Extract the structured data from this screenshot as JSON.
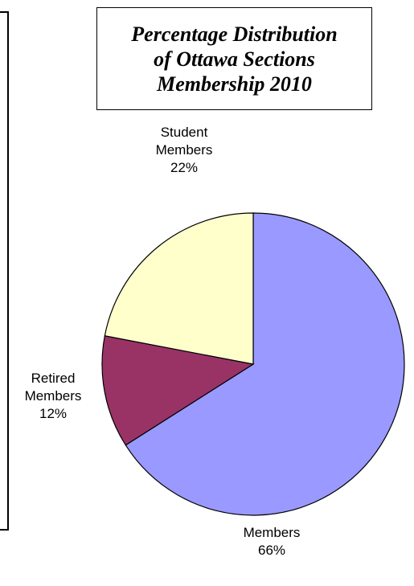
{
  "title_lines": [
    "Percentage Distribution",
    "of Ottawa Sections",
    "Membership 2010"
  ],
  "chart_data": {
    "type": "pie",
    "title": "Percentage Distribution of Ottawa Sections Membership 2010",
    "slices": [
      {
        "label_lines": [
          "Members"
        ],
        "value": 66,
        "value_label": "66%",
        "color": "#9999ff"
      },
      {
        "label_lines": [
          "Retired",
          "Members"
        ],
        "value": 12,
        "value_label": "12%",
        "color": "#993366"
      },
      {
        "label_lines": [
          "Student",
          "Members"
        ],
        "value": 22,
        "value_label": "22%",
        "color": "#ffffcc"
      }
    ],
    "start_angle_deg": 0,
    "direction": "clockwise",
    "legend": "none"
  }
}
